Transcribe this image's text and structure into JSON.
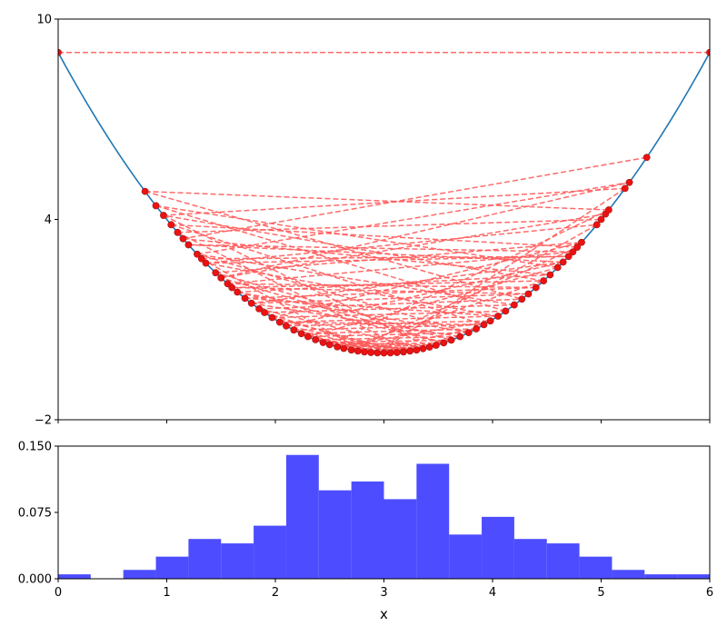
{
  "chart_data": [
    {
      "type": "line",
      "title": "",
      "xlabel": "",
      "ylabel": "",
      "xlim": [
        0,
        6
      ],
      "ylim": [
        -2,
        10
      ],
      "xticks": [
        0,
        1,
        2,
        3,
        4,
        5,
        6
      ],
      "yticks": [
        -2,
        4,
        10
      ],
      "ytick_labels": [
        "−2",
        "4",
        "10"
      ],
      "curve": {
        "function": "(x-3)^2",
        "color": "#1f77b4"
      },
      "sample_points": {
        "color": "#ee1111",
        "x": [
          0.0,
          0.8,
          0.9,
          0.97,
          1.04,
          1.1,
          1.15,
          1.2,
          1.28,
          1.32,
          1.36,
          1.45,
          1.5,
          1.56,
          1.6,
          1.65,
          1.72,
          1.78,
          1.85,
          1.9,
          1.97,
          2.04,
          2.1,
          2.17,
          2.24,
          2.3,
          2.37,
          2.44,
          2.5,
          2.57,
          2.63,
          2.7,
          2.76,
          2.82,
          2.88,
          2.94,
          3.0,
          3.06,
          3.12,
          3.18,
          3.24,
          3.3,
          3.36,
          3.42,
          3.48,
          3.55,
          3.62,
          3.7,
          3.78,
          3.85,
          3.92,
          3.98,
          4.05,
          4.12,
          4.2,
          4.27,
          4.33,
          4.4,
          4.47,
          4.53,
          4.6,
          4.65,
          4.7,
          4.74,
          4.78,
          4.82,
          4.96,
          5.0,
          5.04,
          5.07,
          5.22,
          5.26,
          5.42,
          6.0
        ],
        "jumps": [
          [
            0,
            73
          ],
          [
            1,
            69
          ],
          [
            8,
            71
          ],
          [
            2,
            60
          ],
          [
            70,
            3
          ],
          [
            5,
            67
          ],
          [
            72,
            6
          ],
          [
            10,
            66
          ],
          [
            4,
            64
          ],
          [
            11,
            65
          ],
          [
            9,
            62
          ],
          [
            68,
            12
          ],
          [
            13,
            63
          ],
          [
            7,
            61
          ],
          [
            14,
            58
          ],
          [
            15,
            59
          ],
          [
            57,
            16
          ],
          [
            17,
            56
          ],
          [
            18,
            55
          ],
          [
            19,
            54
          ],
          [
            53,
            20
          ],
          [
            21,
            52
          ],
          [
            22,
            51
          ],
          [
            23,
            50
          ],
          [
            49,
            24
          ],
          [
            25,
            48
          ],
          [
            26,
            47
          ],
          [
            46,
            27
          ],
          [
            28,
            45
          ],
          [
            29,
            44
          ],
          [
            43,
            30
          ],
          [
            31,
            42
          ],
          [
            32,
            41
          ],
          [
            40,
            33
          ],
          [
            34,
            39
          ],
          [
            35,
            38
          ],
          [
            37,
            36
          ],
          [
            1,
            55
          ],
          [
            8,
            48
          ],
          [
            12,
            71
          ],
          [
            20,
            65
          ],
          [
            60,
            25
          ],
          [
            4,
            50
          ],
          [
            15,
            45
          ],
          [
            30,
            58
          ],
          [
            9,
            33
          ],
          [
            5,
            40
          ],
          [
            42,
            18
          ],
          [
            22,
            61
          ],
          [
            2,
            53
          ],
          [
            69,
            28
          ],
          [
            11,
            46
          ],
          [
            16,
            52
          ],
          [
            63,
            7
          ],
          [
            19,
            37
          ],
          [
            44,
            27
          ],
          [
            6,
            59
          ],
          [
            13,
            57
          ],
          [
            50,
            21
          ],
          [
            24,
            36
          ],
          [
            32,
            49
          ],
          [
            10,
            62
          ],
          [
            3,
            43
          ],
          [
            17,
            47
          ],
          [
            56,
            14
          ],
          [
            26,
            41
          ],
          [
            38,
            23
          ],
          [
            29,
            51
          ],
          [
            64,
            31
          ],
          [
            70,
            35
          ],
          [
            66,
            34
          ],
          [
            39,
            20
          ],
          [
            45,
            12
          ],
          [
            52,
            10
          ],
          [
            54,
            8
          ],
          [
            58,
            3
          ],
          [
            61,
            17
          ],
          [
            48,
            15
          ],
          [
            40,
            22
          ],
          [
            42,
            28
          ]
        ]
      }
    },
    {
      "type": "bar",
      "title": "",
      "xlabel": "x",
      "ylabel": "",
      "xlim": [
        0,
        6
      ],
      "ylim": [
        0,
        0.15
      ],
      "xticks": [
        0,
        1,
        2,
        3,
        4,
        5,
        6
      ],
      "yticks": [
        0,
        0.075,
        0.15
      ],
      "ytick_labels": [
        "0.000",
        "0.075",
        "0.150"
      ],
      "bin_width": 0.3,
      "bin_starts": [
        0.0,
        0.3,
        0.6,
        0.9,
        1.2,
        1.5,
        1.8,
        2.1,
        2.4,
        2.7,
        3.0,
        3.3,
        3.6,
        3.9,
        4.2,
        4.5,
        4.8,
        5.1,
        5.4,
        5.7
      ],
      "values": [
        0.005,
        0.0,
        0.01,
        0.025,
        0.045,
        0.04,
        0.06,
        0.14,
        0.1,
        0.11,
        0.09,
        0.13,
        0.05,
        0.07,
        0.045,
        0.04,
        0.025,
        0.01,
        0.005,
        0.005
      ],
      "color": "#4d4dff"
    }
  ]
}
